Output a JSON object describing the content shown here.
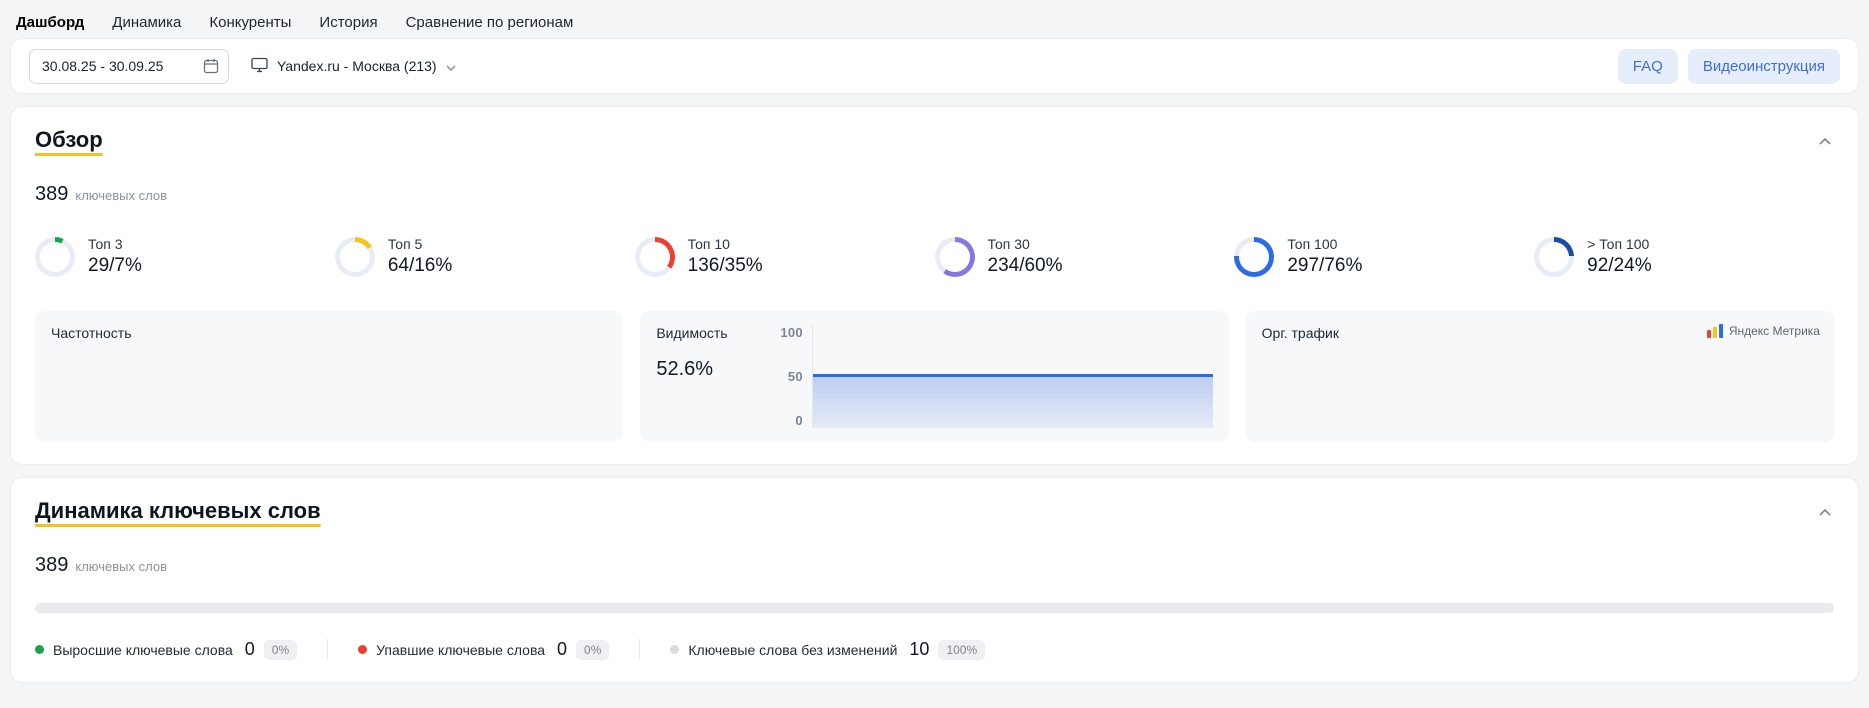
{
  "nav": {
    "items": [
      {
        "label": "Дашборд",
        "active": true
      },
      {
        "label": "Динамика",
        "active": false
      },
      {
        "label": "Конкуренты",
        "active": false
      },
      {
        "label": "История",
        "active": false
      },
      {
        "label": "Сравнение по регионам",
        "active": false
      }
    ]
  },
  "filters": {
    "date_range": "30.08.25 - 30.09.25",
    "project_selector": "Yandex.ru - Москва (213)",
    "faq_button": "FAQ",
    "video_button": "Видеоинструкция"
  },
  "overview": {
    "title": "Обзор",
    "keywords_count": "389",
    "keywords_label": "ключевых слов",
    "stats": [
      {
        "label": "Топ 3",
        "value": "29/7%",
        "percent": 7,
        "color": "#17a34a"
      },
      {
        "label": "Топ 5",
        "value": "64/16%",
        "percent": 16,
        "color": "#f7c51e"
      },
      {
        "label": "Топ 10",
        "value": "136/35%",
        "percent": 35,
        "color": "#ec4132"
      },
      {
        "label": "Топ 30",
        "value": "234/60%",
        "percent": 60,
        "color": "#8678e0"
      },
      {
        "label": "Топ 100",
        "value": "297/76%",
        "percent": 76,
        "color": "#2b6be4"
      },
      {
        "label": "> Топ 100",
        "value": "92/24%",
        "percent": 24,
        "color": "#1d4ca6"
      }
    ],
    "panels": {
      "frequency": {
        "title": "Частотность"
      },
      "visibility": {
        "title": "Видимость",
        "value": "52.6%",
        "percent": 52.6,
        "axis_labels": [
          "100",
          "50",
          "0"
        ],
        "line_color": "#2b6be4"
      },
      "traffic": {
        "title": "Орг. трафик",
        "source_label": "Яндекс Метрика"
      }
    }
  },
  "dynamics": {
    "title": "Динамика ключевых слов",
    "keywords_count": "389",
    "keywords_label": "ключевых слов",
    "bar_color": "#e8eaee",
    "legend": [
      {
        "label": "Выросшие ключевые слова",
        "value": "0",
        "percent": "0%",
        "color": "#17a34a"
      },
      {
        "label": "Упавшие ключевые слова",
        "value": "0",
        "percent": "0%",
        "color": "#ec4132"
      },
      {
        "label": "Ключевые слова без изменений",
        "value": "10",
        "percent": "100%",
        "color": "#d8dce1"
      }
    ]
  }
}
